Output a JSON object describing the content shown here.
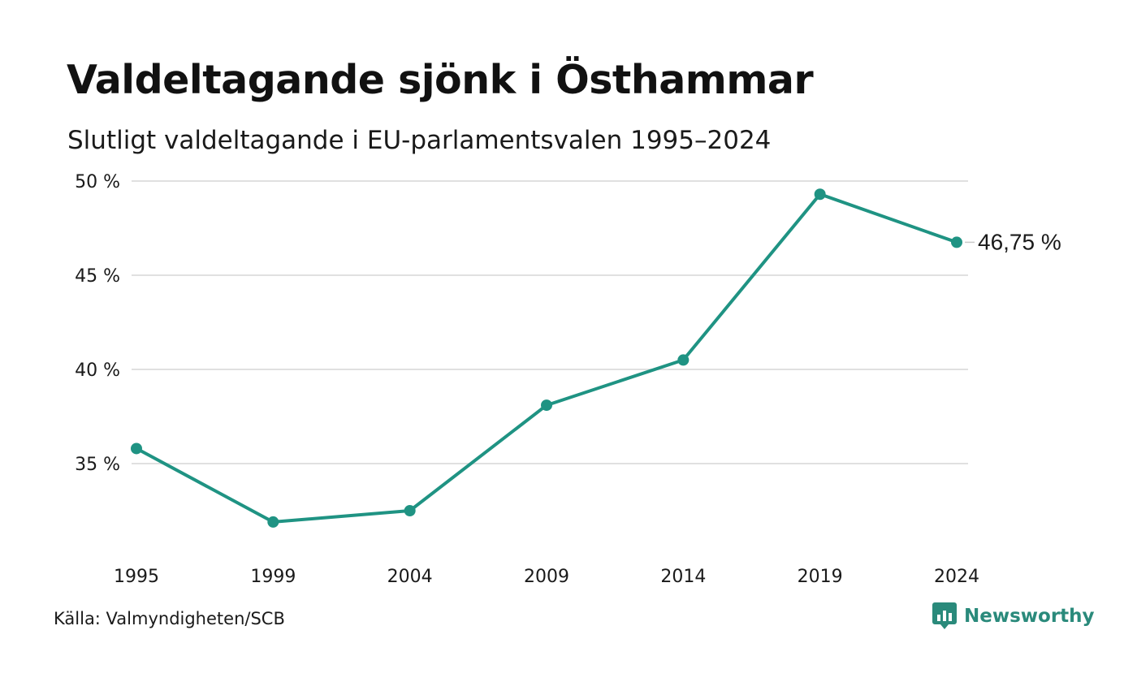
{
  "title": "Valdeltagande sjönk i Östhammar",
  "subtitle": "Slutligt valdeltagande i EU-parlamentsvalen 1995–2024",
  "source": "Källa: Valmyndigheten/SCB",
  "brand": {
    "name": "Newsworthy",
    "logo_icon": "bar-chart-speech-bubble-icon",
    "color": "#2a8a7b"
  },
  "colors": {
    "line": "#1f9383",
    "grid": "#e0e0e0",
    "text": "#1a1a1a"
  },
  "chart_data": {
    "type": "line",
    "title": "Valdeltagande sjönk i Östhammar",
    "subtitle": "Slutligt valdeltagande i EU-parlamentsvalen 1995–2024",
    "x": [
      "1995",
      "1999",
      "2004",
      "2009",
      "2014",
      "2019",
      "2024"
    ],
    "series": [
      {
        "values": [
          35.8,
          31.9,
          32.5,
          38.1,
          40.5,
          49.3,
          46.75
        ]
      }
    ],
    "ylim": [
      30,
      50
    ],
    "yticks": [
      35,
      40,
      45,
      50
    ],
    "ytick_labels": [
      "35 %",
      "40 %",
      "45 %",
      "50 %"
    ],
    "end_label": "46,75 %",
    "grid": true,
    "legend": "none",
    "markers": true
  }
}
